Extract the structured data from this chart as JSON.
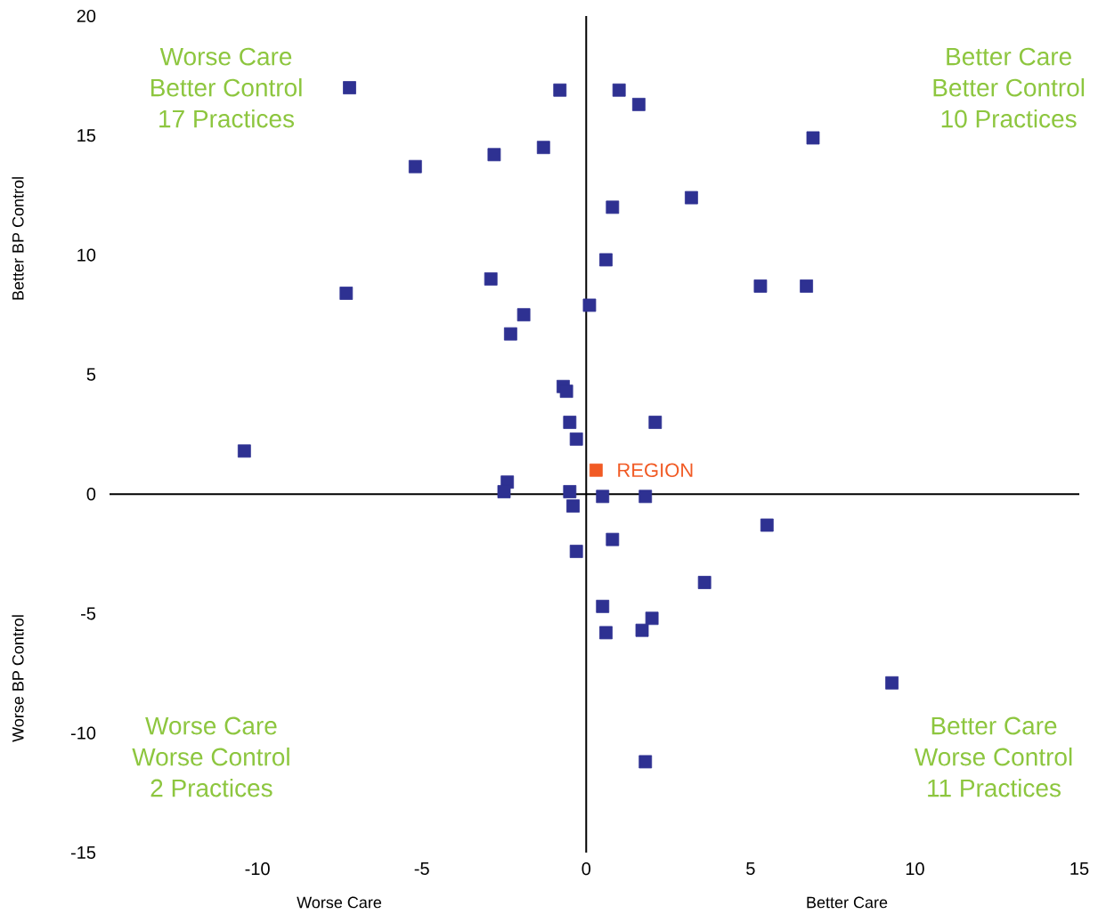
{
  "chart_data": {
    "type": "scatter",
    "marker": "square",
    "xlim": [
      -14.5,
      15
    ],
    "xticks": [
      -10,
      -5,
      0,
      5,
      10,
      15
    ],
    "ylim": [
      -15,
      20
    ],
    "yticks": [
      -15,
      -10,
      -5,
      0,
      5,
      10,
      15,
      20
    ],
    "annotations": [
      "Worse Care",
      "Better Control",
      "17 Practices",
      "Better Care",
      "Better Control",
      "10 Practices",
      "Worse Care",
      "Worse Control",
      "2 Practices",
      "Better Care",
      "Worse Control",
      "11 Practices",
      "Better BP Control",
      "Worse BP Control",
      "Worse Care",
      "Better Care"
    ],
    "series": [
      {
        "color": "#2e3192",
        "x": [
          -7.2,
          -0.8,
          1.0,
          1.6,
          6.9,
          -5.2,
          -2.8,
          -1.3,
          3.2,
          0.8,
          0.6,
          -7.3,
          -2.9,
          5.3,
          6.7,
          -1.9,
          0.1,
          -2.3,
          -0.7,
          -0.6,
          -0.5,
          2.1,
          -0.3,
          -10.4,
          -2.4,
          -2.5,
          -0.5,
          0.5,
          1.8,
          -0.4,
          5.5,
          0.8,
          -0.3,
          3.6,
          0.5,
          2.0,
          0.6,
          1.7,
          9.3,
          1.8
        ],
        "values": [
          17.0,
          16.9,
          16.9,
          16.3,
          14.9,
          13.7,
          14.2,
          14.5,
          12.4,
          12.0,
          9.8,
          8.4,
          9.0,
          8.7,
          8.7,
          7.5,
          7.9,
          6.7,
          4.5,
          4.3,
          3.0,
          3.0,
          2.3,
          1.8,
          0.5,
          0.1,
          0.1,
          -0.1,
          -0.1,
          -0.5,
          -1.3,
          -1.9,
          -2.4,
          -3.7,
          -4.7,
          -5.2,
          -5.8,
          -5.7,
          -7.9,
          -11.2
        ]
      },
      {
        "name": "REGION",
        "color": "#f15a24",
        "x": [
          0.3
        ],
        "values": [
          1.0
        ]
      }
    ]
  }
}
